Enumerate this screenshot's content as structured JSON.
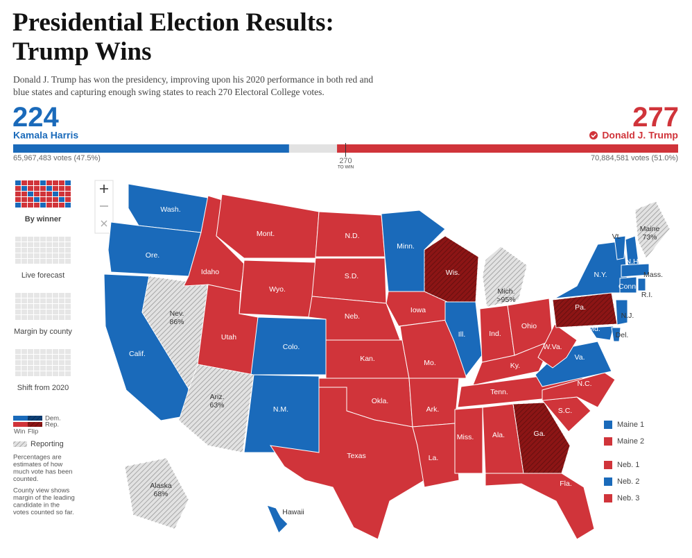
{
  "header": {
    "title_lines": [
      "Presidential Election Results:",
      "Trump Wins"
    ],
    "subtitle_lines": [
      "Donald J. Trump has won the presidency, improving upon his 2020 performance in both red and",
      "blue states and capturing enough swing states to reach 270 Electoral College votes."
    ]
  },
  "tally": {
    "harris": {
      "electoral_votes": 224,
      "name": "Kamala Harris",
      "votes": "65,967,483 votes (47.5%)",
      "color": "#1a6aba"
    },
    "trump": {
      "electoral_votes": 277,
      "name": "Donald J. Trump",
      "votes": "70,884,581 votes (51.0%)",
      "color": "#d0343a"
    },
    "to_win": {
      "value": 270,
      "label": "TO WIN"
    }
  },
  "views": [
    "By winner",
    "Live forecast",
    "Margin by county",
    "Shift from 2020"
  ],
  "legend": {
    "dem": "Dem.",
    "rep": "Rep.",
    "win": "Win",
    "flip": "Flip",
    "reporting": "Reporting",
    "notes": [
      [
        "Percentages are",
        "estimates of how",
        "much vote has been",
        "counted."
      ],
      [
        "County view shows",
        "margin of the leading",
        "candidate in the",
        "votes counted so far."
      ]
    ]
  },
  "states": [
    {
      "label": "Wash.",
      "color": "#1a6aba"
    },
    {
      "label": "Ore.",
      "color": "#1a6aba"
    },
    {
      "label": "Calif.",
      "color": "#1a6aba"
    },
    {
      "label": "Nev.",
      "color": "#e2e2e2",
      "hatched": true,
      "reporting": "86%"
    },
    {
      "label": "Idaho",
      "color": "#d0343a"
    },
    {
      "label": "Mont.",
      "color": "#d0343a"
    },
    {
      "label": "Wyo.",
      "color": "#d0343a"
    },
    {
      "label": "Utah",
      "color": "#d0343a"
    },
    {
      "label": "Colo.",
      "color": "#1a6aba"
    },
    {
      "label": "Ariz.",
      "color": "#e2e2e2",
      "hatched": true,
      "reporting": "63%"
    },
    {
      "label": "N.M.",
      "color": "#1a6aba"
    },
    {
      "label": "N.D.",
      "color": "#d0343a"
    },
    {
      "label": "S.D.",
      "color": "#d0343a"
    },
    {
      "label": "Neb.",
      "color": "#d0343a"
    },
    {
      "label": "Kan.",
      "color": "#d0343a"
    },
    {
      "label": "Okla.",
      "color": "#d0343a"
    },
    {
      "label": "Texas",
      "color": "#d0343a"
    },
    {
      "label": "Minn.",
      "color": "#1a6aba"
    },
    {
      "label": "Iowa",
      "color": "#d0343a"
    },
    {
      "label": "Mo.",
      "color": "#d0343a"
    },
    {
      "label": "Ark.",
      "color": "#d0343a"
    },
    {
      "label": "La.",
      "color": "#d0343a"
    },
    {
      "label": "Wis.",
      "color": "#8c1515",
      "hatched": true
    },
    {
      "label": "Ill.",
      "color": "#1a6aba"
    },
    {
      "label": "Mich.",
      "color": "#e2e2e2",
      "hatched": true,
      "reporting": ">95%"
    },
    {
      "label": "Ind.",
      "color": "#d0343a"
    },
    {
      "label": "Ohio",
      "color": "#d0343a"
    },
    {
      "label": "Ky.",
      "color": "#d0343a"
    },
    {
      "label": "Tenn.",
      "color": "#d0343a"
    },
    {
      "label": "Miss.",
      "color": "#d0343a"
    },
    {
      "label": "Ala.",
      "color": "#d0343a"
    },
    {
      "label": "Ga.",
      "color": "#8c1515",
      "hatched": true
    },
    {
      "label": "Fla.",
      "color": "#d0343a"
    },
    {
      "label": "S.C.",
      "color": "#d0343a"
    },
    {
      "label": "N.C.",
      "color": "#d0343a"
    },
    {
      "label": "Va.",
      "color": "#1a6aba"
    },
    {
      "label": "W.Va.",
      "color": "#d0343a"
    },
    {
      "label": "Pa.",
      "color": "#8c1515",
      "hatched": true
    },
    {
      "label": "N.Y.",
      "color": "#1a6aba"
    },
    {
      "label": "Md.",
      "color": "#1a6aba"
    },
    {
      "label": "Del.",
      "color": "#1a6aba"
    },
    {
      "label": "N.J.",
      "color": "#1a6aba"
    },
    {
      "label": "Vt.",
      "color": "#1a6aba"
    },
    {
      "label": "N.H.",
      "color": "#1a6aba"
    },
    {
      "label": "Maine",
      "color": "#e2e2e2",
      "hatched": true,
      "reporting": "73%"
    },
    {
      "label": "Mass.",
      "color": "#1a6aba"
    },
    {
      "label": "Conn.",
      "color": "#1a6aba"
    },
    {
      "label": "R.I.",
      "color": "#1a6aba"
    },
    {
      "label": "Alaska",
      "color": "#e2e2e2",
      "hatched": true,
      "reporting": "68%"
    },
    {
      "label": "Hawaii",
      "color": "#1a6aba"
    }
  ],
  "districts": [
    {
      "label": "Maine 1",
      "color": "#1a6aba"
    },
    {
      "label": "Maine 2",
      "color": "#d0343a"
    },
    {
      "label": "Neb. 1",
      "color": "#d0343a"
    },
    {
      "label": "Neb. 2",
      "color": "#1a6aba"
    },
    {
      "label": "Neb. 3",
      "color": "#d0343a"
    }
  ]
}
